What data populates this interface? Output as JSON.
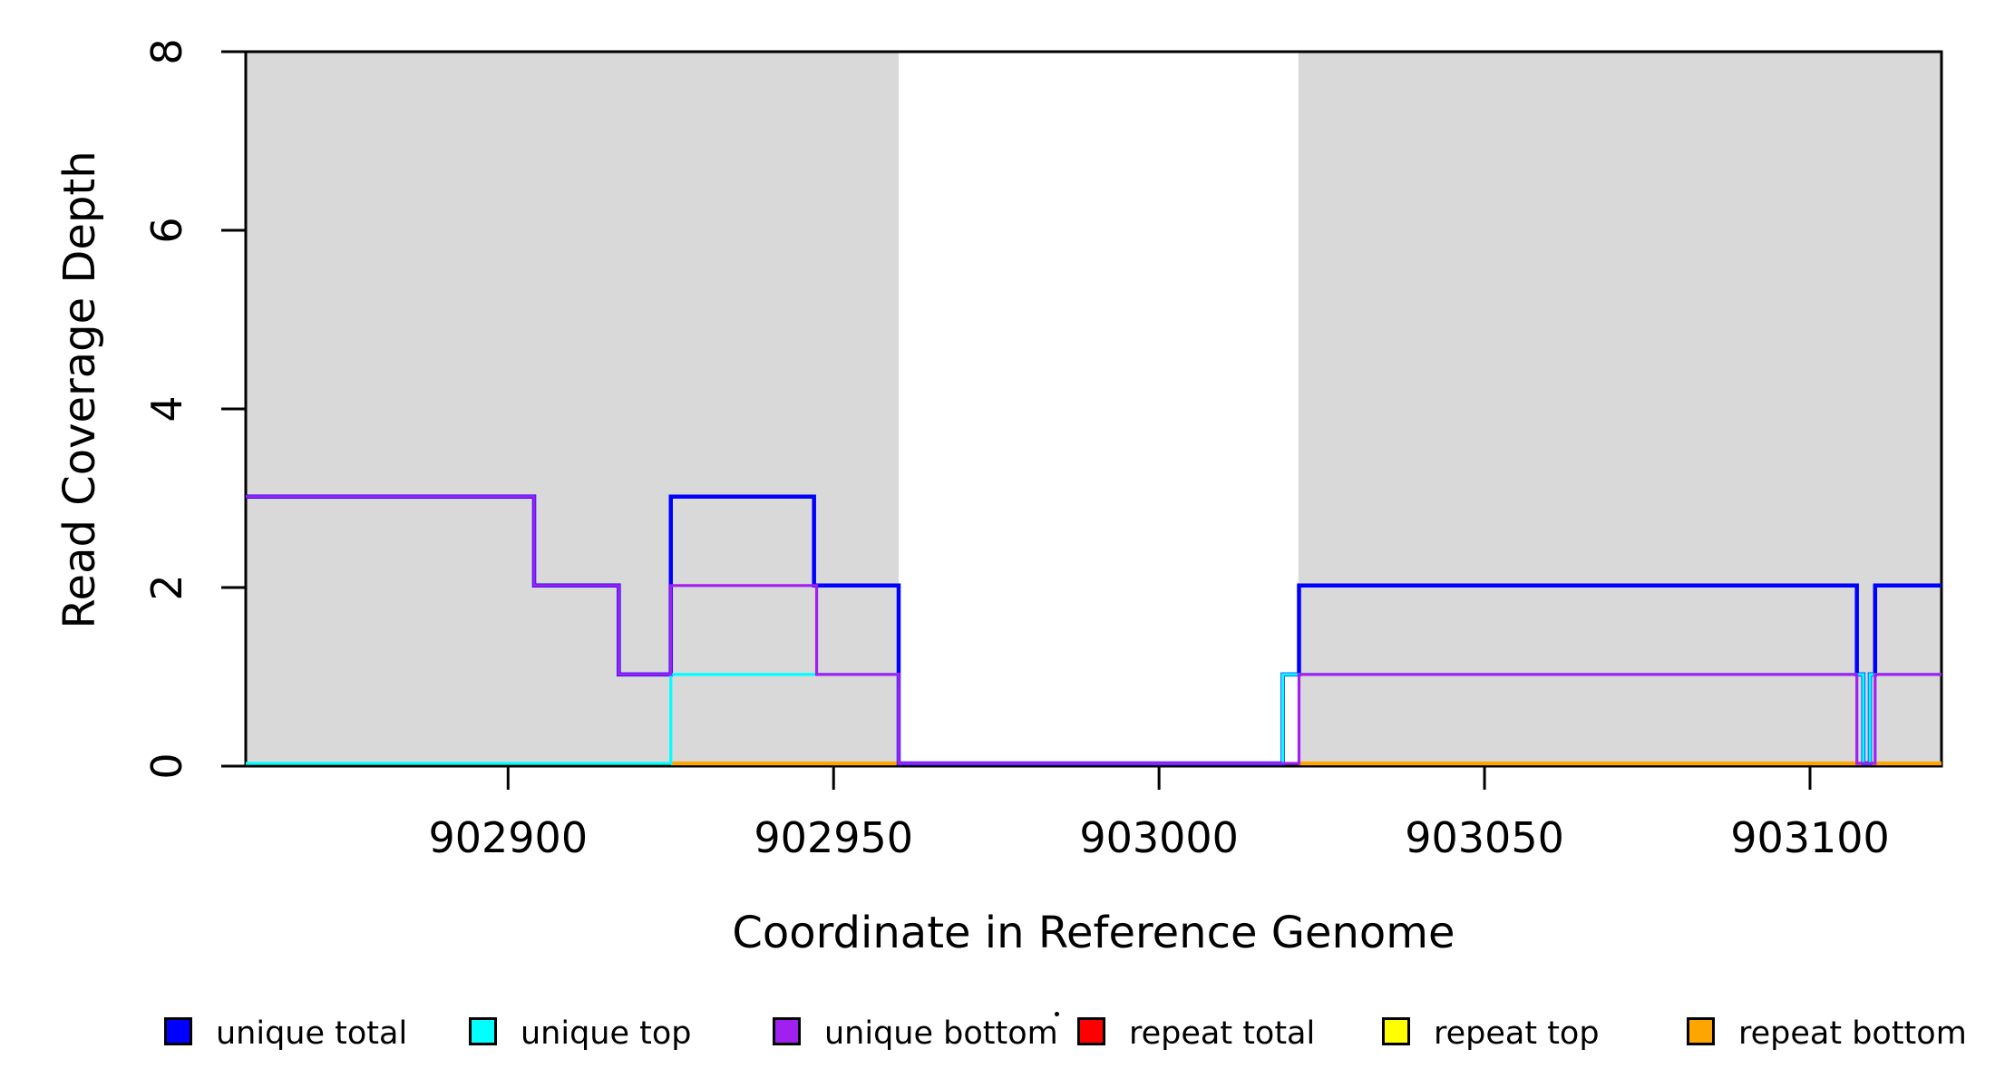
{
  "chart_data": {
    "type": "line",
    "line_style": "step-post",
    "title": "",
    "xlabel": "Coordinate in Reference Genome",
    "ylabel": "Read Coverage Depth",
    "xlim": [
      902859.7,
      903120.2
    ],
    "ylim": [
      0,
      8
    ],
    "x_ticks": [
      902900,
      902950,
      903000,
      903050,
      903100
    ],
    "y_ticks": [
      0,
      2,
      4,
      6,
      8
    ],
    "grid": false,
    "background_color": "#FFFFFF",
    "box_color": "#000000",
    "shaded_regions": [
      {
        "name": "gray-region-1",
        "x0": 902859.7,
        "x1": 902960.0,
        "color": "#D9D9D9"
      },
      {
        "name": "gray-region-2",
        "x0": 903021.4,
        "x1": 903120.2,
        "color": "#D9D9D9"
      }
    ],
    "draw_order": [
      "repeat total",
      "repeat top",
      "repeat bottom",
      "unique total",
      "unique top",
      "unique bottom"
    ],
    "series": [
      {
        "name": "unique total",
        "color": "#0000FF",
        "width": 4.5,
        "steps": [
          [
            902859.7,
            3
          ],
          [
            902904,
            2
          ],
          [
            902917,
            1
          ],
          [
            902925,
            3
          ],
          [
            902947,
            2
          ],
          [
            902960,
            0
          ],
          [
            903019,
            1
          ],
          [
            903021.5,
            2
          ],
          [
            903107.2,
            1
          ],
          [
            903108.2,
            0
          ],
          [
            903109.2,
            1
          ],
          [
            903110,
            2
          ],
          [
            903120.2,
            2
          ]
        ]
      },
      {
        "name": "unique top",
        "color": "#00FFFF",
        "width": 3.2,
        "steps": [
          [
            902859.7,
            0
          ],
          [
            902925,
            1
          ],
          [
            902960,
            0
          ],
          [
            903019,
            1
          ],
          [
            903108.2,
            0
          ],
          [
            903109.2,
            1
          ],
          [
            903120.2,
            1
          ]
        ]
      },
      {
        "name": "unique bottom",
        "color": "#A020F0",
        "width": 3.2,
        "steps": [
          [
            902859.7,
            3
          ],
          [
            902904,
            2
          ],
          [
            902917,
            1
          ],
          [
            902925,
            2
          ],
          [
            902947.4,
            1
          ],
          [
            902960,
            0
          ],
          [
            903021.5,
            1
          ],
          [
            903107.2,
            0
          ],
          [
            903110,
            1
          ],
          [
            903120.2,
            1
          ]
        ]
      },
      {
        "name": "repeat total",
        "color": "#FF0000",
        "width": 3,
        "value": 0,
        "segments": [
          [
            902925,
            902960
          ],
          [
            903021.4,
            903120.2
          ]
        ]
      },
      {
        "name": "repeat top",
        "color": "#FFFF00",
        "width": 3,
        "value": 0,
        "segments": [
          [
            902925,
            902960
          ],
          [
            903021.4,
            903120.2
          ]
        ]
      },
      {
        "name": "repeat bottom",
        "color": "#FFA500",
        "width": 4.2,
        "value": 0,
        "segments": [
          [
            902925,
            902960
          ],
          [
            903021.4,
            903120.2
          ]
        ]
      }
    ],
    "legend_position": "bottom",
    "legend": [
      {
        "label": "unique total",
        "color": "#0000FF"
      },
      {
        "label": "unique top",
        "color": "#00FFFF"
      },
      {
        "label": "unique bottom",
        "color": "#A020F0"
      },
      {
        "label": "repeat total",
        "color": "#FF0000"
      },
      {
        "label": "repeat top",
        "color": "#FFFF00"
      },
      {
        "label": "repeat bottom",
        "color": "#FFA500"
      }
    ],
    "annotations": [
      {
        "name": "stray-dot",
        "shape": "dot",
        "color": "#000000"
      }
    ]
  }
}
